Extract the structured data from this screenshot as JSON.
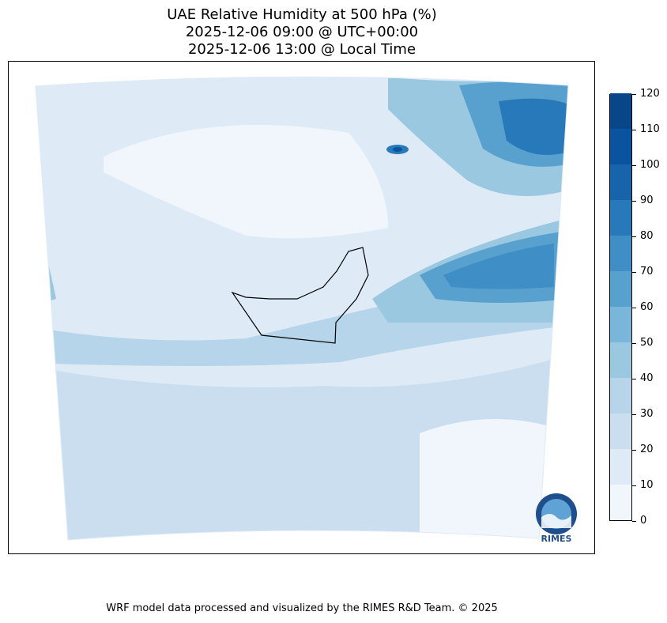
{
  "title_lines": [
    "UAE Relative Humidity at 500 hPa (%)",
    "2025-12-06 09:00 @ UTC+00:00",
    "2025-12-06 13:00 @ Local Time"
  ],
  "colorbar": {
    "ticks": [
      "0",
      "10",
      "20",
      "30",
      "40",
      "50",
      "60",
      "70",
      "80",
      "90",
      "100",
      "110",
      "120"
    ],
    "colors": [
      "#f0f6fc",
      "#deebf7",
      "#cadef0",
      "#b6d5ea",
      "#9ac8e0",
      "#7ab6d9",
      "#58a1cf",
      "#3f8ec5",
      "#2879b9",
      "#1864aa",
      "#0a539e",
      "#08468a",
      "#08306b"
    ]
  },
  "logo": {
    "text": "RIMES"
  },
  "footer": "WRF model data processed and visualized by the RIMES R&D Team. © 2025"
}
